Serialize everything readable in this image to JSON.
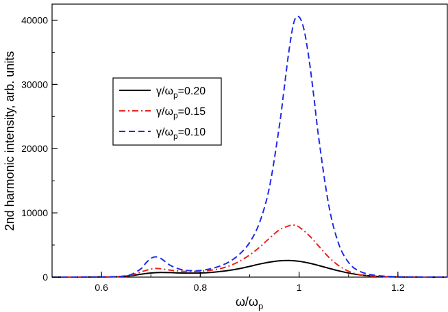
{
  "chart_data": {
    "type": "line",
    "xlabel": "ω/ωp",
    "xlabel_base": "ω/ω",
    "xlabel_sub": "p",
    "ylabel": "2nd harmonic intensity, arb. units",
    "xlim": [
      0.5,
      1.3
    ],
    "ylim": [
      0,
      42500
    ],
    "x_ticks": [
      0.6,
      0.8,
      1.0,
      1.2
    ],
    "x_tick_labels": [
      "0.6",
      "0.8",
      "1",
      "1.2"
    ],
    "y_ticks": [
      0,
      10000,
      20000,
      30000,
      40000
    ],
    "y_tick_labels": [
      "0",
      "10000",
      "20000",
      "30000",
      "40000"
    ],
    "grid": false,
    "legend_position": "upper-left",
    "series": [
      {
        "name": "γ/ωp=0.20",
        "label_base": "γ/ω",
        "label_sub": "p",
        "label_tail": "=0.20",
        "color": "#000000",
        "dash": "solid",
        "x": [
          0.5,
          0.55,
          0.6,
          0.62,
          0.64,
          0.66,
          0.68,
          0.7,
          0.72,
          0.74,
          0.76,
          0.78,
          0.8,
          0.82,
          0.84,
          0.86,
          0.88,
          0.9,
          0.92,
          0.94,
          0.96,
          0.98,
          1.0,
          1.02,
          1.04,
          1.06,
          1.08,
          1.1,
          1.12,
          1.15,
          1.2,
          1.25,
          1.3
        ],
        "values": [
          0,
          5,
          20,
          40,
          90,
          220,
          450,
          640,
          720,
          700,
          640,
          620,
          640,
          720,
          860,
          1060,
          1330,
          1670,
          2030,
          2330,
          2530,
          2580,
          2460,
          2180,
          1800,
          1380,
          980,
          640,
          380,
          150,
          30,
          5,
          0
        ]
      },
      {
        "name": "γ/ωp=0.15",
        "label_base": "γ/ω",
        "label_sub": "p",
        "label_tail": "=0.15",
        "color": "#e8231c",
        "dash": "dashdot",
        "x": [
          0.5,
          0.55,
          0.6,
          0.62,
          0.64,
          0.66,
          0.68,
          0.7,
          0.71,
          0.72,
          0.74,
          0.76,
          0.78,
          0.8,
          0.82,
          0.84,
          0.86,
          0.88,
          0.9,
          0.92,
          0.94,
          0.96,
          0.98,
          0.99,
          1.0,
          1.02,
          1.04,
          1.06,
          1.08,
          1.1,
          1.12,
          1.15,
          1.2,
          1.25,
          1.3
        ],
        "values": [
          0,
          5,
          20,
          40,
          100,
          300,
          800,
          1250,
          1350,
          1300,
          1080,
          920,
          880,
          920,
          1050,
          1320,
          1780,
          2500,
          3450,
          4650,
          6050,
          7350,
          8000,
          8100,
          7800,
          6500,
          4800,
          3100,
          1800,
          920,
          420,
          140,
          25,
          5,
          0
        ]
      },
      {
        "name": "γ/ωp=0.10",
        "label_base": "γ/ω",
        "label_sub": "p",
        "label_tail": "=0.10",
        "color": "#1f2be8",
        "dash": "dashed",
        "x": [
          0.5,
          0.55,
          0.6,
          0.62,
          0.64,
          0.66,
          0.68,
          0.69,
          0.7,
          0.71,
          0.72,
          0.73,
          0.74,
          0.76,
          0.78,
          0.8,
          0.82,
          0.84,
          0.86,
          0.88,
          0.9,
          0.92,
          0.94,
          0.96,
          0.97,
          0.98,
          0.99,
          1.0,
          1.01,
          1.02,
          1.03,
          1.04,
          1.06,
          1.08,
          1.1,
          1.12,
          1.15,
          1.2,
          1.25,
          1.3
        ],
        "values": [
          0,
          5,
          20,
          50,
          120,
          400,
          1300,
          2200,
          2900,
          3150,
          2900,
          2350,
          1800,
          1200,
          1000,
          1030,
          1280,
          1720,
          2450,
          3600,
          5400,
          8500,
          14000,
          23500,
          29500,
          35500,
          39800,
          40500,
          38500,
          34000,
          28000,
          21500,
          11200,
          5200,
          2300,
          1000,
          320,
          50,
          8,
          0
        ]
      }
    ]
  }
}
